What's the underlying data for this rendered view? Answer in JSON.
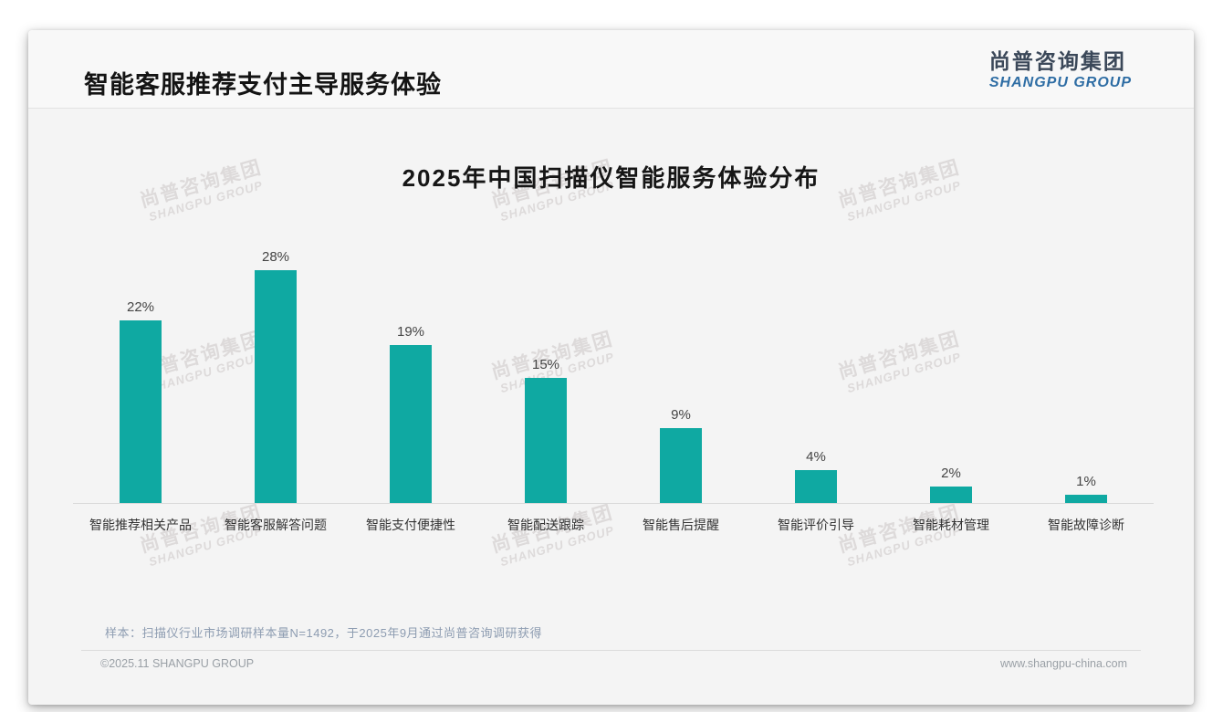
{
  "page": {
    "header": {
      "title": "智能客服推荐支付主导服务体验"
    },
    "logo": {
      "cn": "尚普咨询集团",
      "en": "SHANGPU GROUP"
    },
    "watermark": {
      "cn": "尚普咨询集团",
      "en": "SHANGPU GROUP"
    },
    "footer": {
      "note": "样本：扫描仪行业市场调研样本量N=1492，于2025年9月通过尚普咨询调研获得",
      "copyright": "©2025.11 SHANGPU GROUP",
      "website": "www.shangpu-china.com"
    },
    "colors": {
      "bar": "#0fa9a2",
      "logo_cn": "#3b4859",
      "logo_en": "#2e6da4",
      "note_text": "#8d9cb1"
    }
  },
  "chart_data": {
    "type": "bar",
    "title": "2025年中国扫描仪智能服务体验分布",
    "categories": [
      "智能推荐相关产品",
      "智能客服解答问题",
      "智能支付便捷性",
      "智能配送跟踪",
      "智能售后提醒",
      "智能评价引导",
      "智能耗材管理",
      "智能故障诊断"
    ],
    "values": [
      22,
      28,
      19,
      15,
      9,
      4,
      2,
      1
    ],
    "data_labels": [
      "22%",
      "28%",
      "19%",
      "15%",
      "9%",
      "4%",
      "2%",
      "1%"
    ],
    "unit": "%",
    "ylim": [
      0,
      30
    ],
    "bar_color": "#0fa9a2",
    "grid": false,
    "legend": "none",
    "value_label_position": "above-bar",
    "xlabel": "",
    "ylabel": ""
  }
}
